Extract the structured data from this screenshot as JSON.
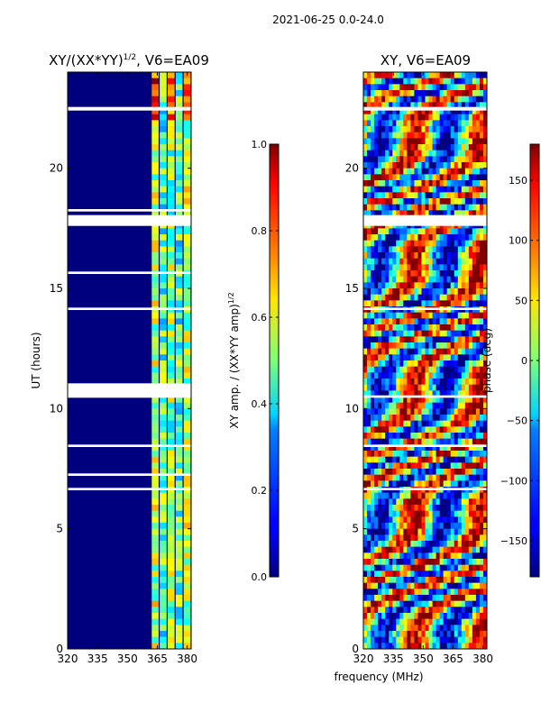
{
  "figure": {
    "suptitle": "2021-06-25 0.0-24.0",
    "shared_xlabel": "frequency (MHz)"
  },
  "chart_data": [
    {
      "type": "heatmap",
      "title": "XY/(XX*YY)",
      "title_sup": "1/2",
      "title_suffix": ", V6=EA09",
      "ylabel": "UT (hours)",
      "xlim": [
        320,
        382
      ],
      "ylim": [
        0,
        24
      ],
      "xticks": [
        320,
        335,
        350,
        365,
        380
      ],
      "yticks": [
        0,
        5,
        10,
        15,
        20
      ],
      "colorbar": {
        "label": "XY amp. / (XX*YY amp)",
        "label_sup": "1/2",
        "range": [
          0.0,
          1.0
        ],
        "ticks": [
          "0.0",
          "0.2",
          "0.4",
          "0.6",
          "0.8",
          "1.0"
        ]
      },
      "band_edges_mhz": [
        362,
        366,
        370,
        374,
        378,
        382
      ],
      "band_levels": [
        0.55,
        0.45,
        0.5,
        0.45,
        0.55
      ],
      "gaps_hours": [
        [
          10.45,
          11.05
        ],
        [
          17.6,
          18.05
        ],
        [
          18.2,
          18.3
        ],
        [
          22.4,
          22.55
        ],
        [
          6.6,
          6.7
        ],
        [
          7.2,
          7.3
        ],
        [
          8.4,
          8.5
        ],
        [
          14.1,
          14.2
        ],
        [
          15.6,
          15.7
        ]
      ],
      "colors": {
        "low": "#00007f",
        "high": "#7f0000"
      }
    },
    {
      "type": "heatmap",
      "title": "XY, V6=EA09",
      "xlim": [
        320,
        382
      ],
      "ylim": [
        0,
        24
      ],
      "xticks": [
        320,
        335,
        350,
        365,
        380
      ],
      "yticks": [
        0,
        5,
        10,
        15,
        20
      ],
      "colorbar": {
        "label": "phase (deg)",
        "range": [
          -180,
          180
        ],
        "ticks": [
          "-150",
          "-100",
          "-50",
          "0",
          "50",
          "100",
          "150"
        ]
      },
      "gaps_hours": [
        [
          10.45,
          10.55
        ],
        [
          17.6,
          18.05
        ],
        [
          22.4,
          22.55
        ],
        [
          6.6,
          6.7
        ],
        [
          8.4,
          8.5
        ],
        [
          14.1,
          14.2
        ]
      ],
      "colors": {
        "low": "#00007f",
        "high": "#7f0000"
      }
    }
  ]
}
